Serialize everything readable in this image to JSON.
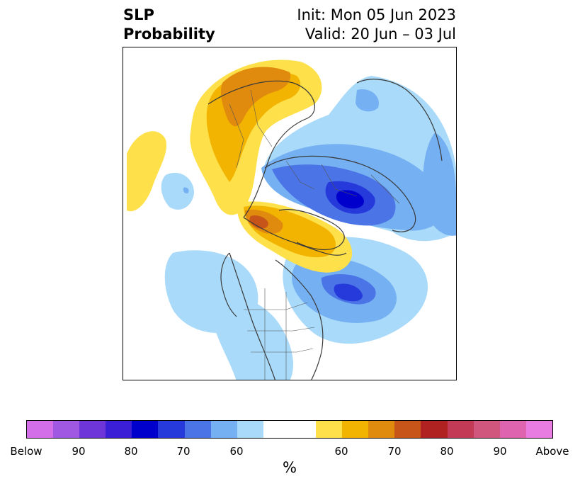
{
  "title": {
    "left_line1": "SLP",
    "left_line2": "Probability",
    "right_line1": "Init: Mon 05 Jun 2023",
    "right_line2": "Valid: 20 Jun – 03 Jul"
  },
  "colorbar": {
    "colors": [
      "#d36ee8",
      "#a057e2",
      "#6e36d9",
      "#3a1fd6",
      "#0000cc",
      "#2639db",
      "#4b74e6",
      "#75b0f2",
      "#a9dafa",
      "#ffffff",
      "#ffffff",
      "#fee04a",
      "#f2b400",
      "#e08a0e",
      "#c75418",
      "#b02222",
      "#c23a55",
      "#d0567e",
      "#df64b0",
      "#e87ce0"
    ],
    "ticks": [
      "Below",
      "90",
      "80",
      "70",
      "60",
      "60",
      "70",
      "80",
      "90",
      "Above"
    ],
    "unit": "%"
  },
  "legend_meaning": {
    "blue_side": "Below",
    "orange_side": "Above"
  }
}
